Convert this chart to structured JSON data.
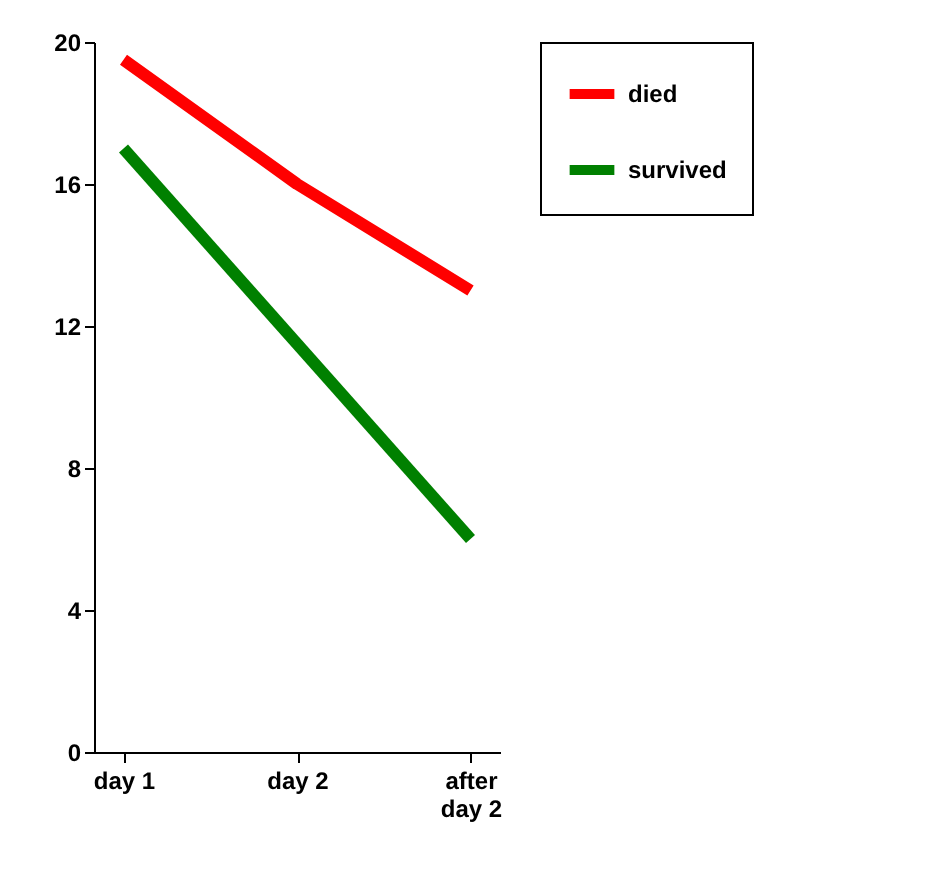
{
  "chart_data": {
    "type": "line",
    "categories": [
      "day 1",
      "day 2",
      "after day 2"
    ],
    "series": [
      {
        "name": "died",
        "color": "#ff0000",
        "values": [
          19.5,
          16,
          13
        ]
      },
      {
        "name": "survived",
        "color": "#008000",
        "values": [
          17,
          11.5,
          6
        ]
      }
    ],
    "ylim": [
      0,
      20
    ],
    "yticks": [
      0,
      4,
      8,
      12,
      16,
      20
    ],
    "grid": false,
    "legend": "right",
    "marker": "none",
    "line_style": "solid"
  }
}
